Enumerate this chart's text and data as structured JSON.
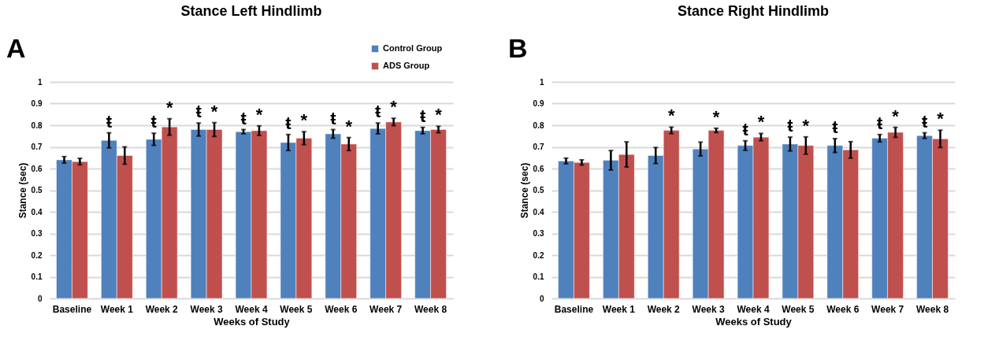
{
  "chart_data": [
    {
      "type": "bar",
      "title": "Stance Left Hindlimb",
      "xlabel": "Weeks of Study",
      "ylabel": "Stance (sec)",
      "categories": [
        "Baseline",
        "Week 1",
        "Week 2",
        "Week 3",
        "Week 4",
        "Week 5",
        "Week 6",
        "Week 7",
        "Week 8"
      ],
      "series": [
        {
          "name": "Control Group",
          "color": "#4f81bd",
          "values": [
            0.64,
            0.73,
            0.735,
            0.78,
            0.77,
            0.72,
            0.76,
            0.785,
            0.775
          ],
          "errors": [
            0.015,
            0.035,
            0.028,
            0.03,
            0.01,
            0.037,
            0.02,
            0.025,
            0.015
          ]
        },
        {
          "name": "ADS Group",
          "color": "#c0504d",
          "values": [
            0.632,
            0.66,
            0.792,
            0.78,
            0.775,
            0.74,
            0.713,
            0.815,
            0.78
          ],
          "errors": [
            0.015,
            0.04,
            0.038,
            0.032,
            0.022,
            0.03,
            0.03,
            0.017,
            0.015
          ]
        }
      ],
      "ylim": [
        0,
        1
      ],
      "yticks": [
        0,
        0.1,
        0.2,
        0.3,
        0.4,
        0.5,
        0.6,
        0.7,
        0.8,
        0.9,
        1
      ],
      "grid": "y",
      "legend": "top right",
      "annotations": [
        "A",
        {
          "text": "ŧ",
          "x": "Week 1",
          "y": 0.73
        },
        {
          "text": "ŧ",
          "x": "Week 2",
          "y": 0.735
        },
        {
          "text": "*",
          "x": "Week 2",
          "y": 0.792
        },
        {
          "text": "ŧ",
          "x": "Week 3",
          "y": 0.78
        },
        {
          "text": "*",
          "x": "Week 3",
          "y": 0.78
        },
        {
          "text": "ŧ",
          "x": "Week 4",
          "y": 0.77
        },
        {
          "text": "*",
          "x": "Week 4",
          "y": 0.775
        },
        {
          "text": "ŧ",
          "x": "Week 5",
          "y": 0.72
        },
        {
          "text": "*",
          "x": "Week 5",
          "y": 0.74
        },
        {
          "text": "ŧ",
          "x": "Week 6",
          "y": 0.76
        },
        {
          "text": "*",
          "x": "Week 6",
          "y": 0.713
        },
        {
          "text": "ŧ",
          "x": "Week 7",
          "y": 0.785
        },
        {
          "text": "*",
          "x": "Week 7",
          "y": 0.815
        },
        {
          "text": "ŧ",
          "x": "Week 8",
          "y": 0.775
        },
        {
          "text": "*",
          "x": "Week 8",
          "y": 0.78
        }
      ]
    },
    {
      "type": "bar",
      "title": "Stance Right Hindlimb",
      "xlabel": "Weeks of Study",
      "ylabel": "Stance (sec)",
      "categories": [
        "Baseline",
        "Week 1",
        "Week 2",
        "Week 3",
        "Week 4",
        "Week 5",
        "Week 6",
        "Week 7",
        "Week 8"
      ],
      "series": [
        {
          "name": "Control Group",
          "color": "#4f81bd",
          "values": [
            0.635,
            0.638,
            0.66,
            0.69,
            0.706,
            0.713,
            0.706,
            0.74,
            0.752
          ],
          "errors": [
            0.013,
            0.045,
            0.037,
            0.032,
            0.022,
            0.032,
            0.032,
            0.017,
            0.013
          ]
        },
        {
          "name": "ADS Group",
          "color": "#c0504d",
          "values": [
            0.628,
            0.665,
            0.776,
            0.776,
            0.745,
            0.706,
            0.686,
            0.767,
            0.737
          ],
          "errors": [
            0.012,
            0.058,
            0.015,
            0.01,
            0.017,
            0.04,
            0.038,
            0.023,
            0.04
          ]
        }
      ],
      "ylim": [
        0,
        1
      ],
      "yticks": [
        0,
        0.1,
        0.2,
        0.3,
        0.4,
        0.5,
        0.6,
        0.7,
        0.8,
        0.9,
        1
      ],
      "grid": "y",
      "legend": "top right",
      "annotations": [
        "B",
        {
          "text": "*",
          "x": "Week 2",
          "y": 0.776
        },
        {
          "text": "*",
          "x": "Week 3",
          "y": 0.776
        },
        {
          "text": "ŧ",
          "x": "Week 4",
          "y": 0.706
        },
        {
          "text": "*",
          "x": "Week 4",
          "y": 0.745
        },
        {
          "text": "ŧ",
          "x": "Week 5",
          "y": 0.713
        },
        {
          "text": "*",
          "x": "Week 5",
          "y": 0.706
        },
        {
          "text": "ŧ",
          "x": "Week 6",
          "y": 0.706
        },
        {
          "text": "ŧ",
          "x": "Week 7",
          "y": 0.74
        },
        {
          "text": "*",
          "x": "Week 7",
          "y": 0.767
        },
        {
          "text": "ŧ",
          "x": "Week 8",
          "y": 0.752
        },
        {
          "text": "*",
          "x": "Week 8",
          "y": 0.737
        }
      ]
    }
  ]
}
